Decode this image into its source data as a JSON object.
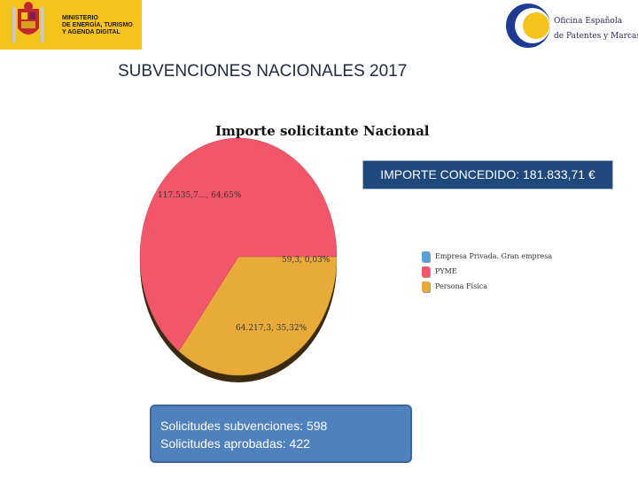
{
  "header": {
    "ministry_lines": [
      "MINISTERIO",
      "DE ENERGÍA, TURISMO",
      "Y AGENDA DIGITAL"
    ],
    "oepm_lines": [
      "Oficina Española",
      "de Patentes y Marcas"
    ]
  },
  "slide": {
    "title": "SUBVENCIONES NACIONALES 2017",
    "concedido": "IMPORTE CONCEDIDO: 181.833,71 €",
    "stats": {
      "line1": "Solicitudes  subvenciones: 598",
      "line2": "Solicitudes aprobadas: 422"
    }
  },
  "chart_data": {
    "type": "pie",
    "title": "Importe solicitante Nacional",
    "slices": [
      {
        "name": "Empresa Privada. Gran empresa",
        "label": "59,3, 0,03%",
        "percent": 0.03,
        "color": "#5aa0d8"
      },
      {
        "name": "PYME",
        "label": "117.535,7..., 64,65%",
        "percent": 64.65,
        "color": "#f2566a"
      },
      {
        "name": "Persona Física",
        "label": "64.217,3, 35,32%",
        "percent": 35.32,
        "color": "#e8ab3a"
      }
    ],
    "legend_position": "right"
  },
  "colors": {
    "concedido_bg": "#1f497d",
    "stats_bg": "#4f81bd",
    "ministry_bg": "#f6c21c"
  }
}
